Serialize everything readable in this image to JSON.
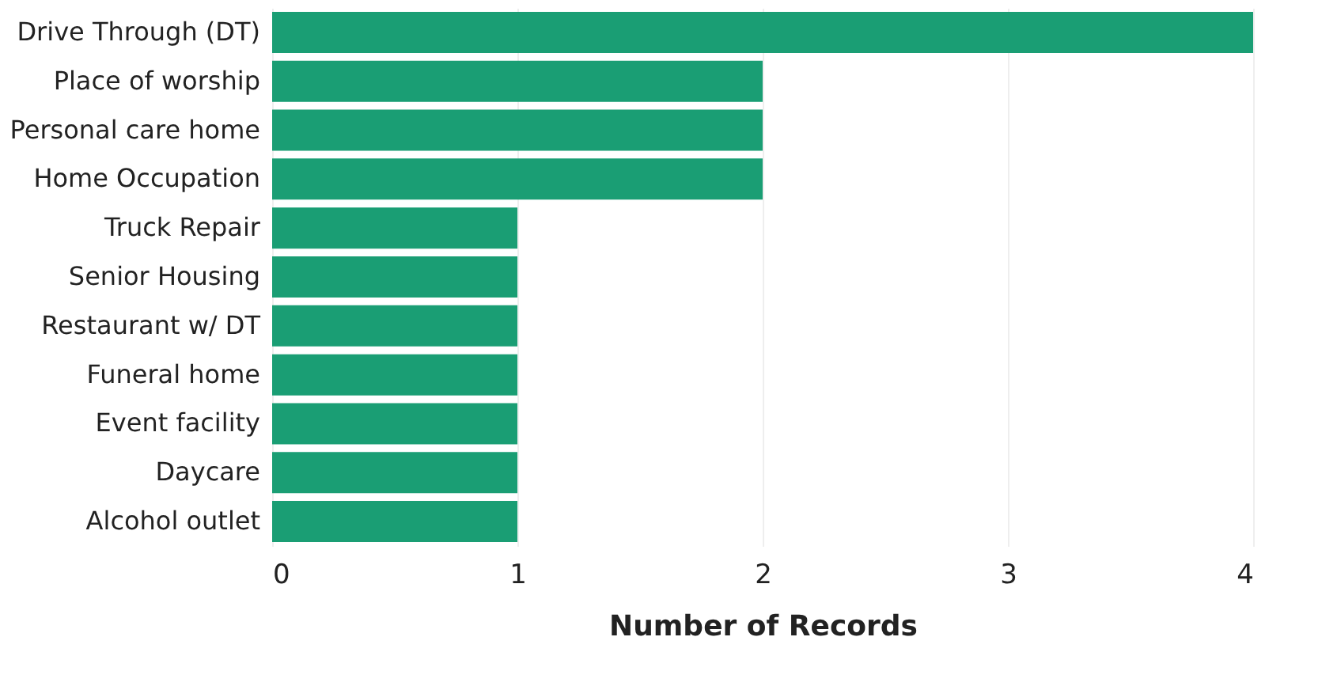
{
  "chart_data": {
    "type": "bar",
    "orientation": "horizontal",
    "xlabel": "Number of Records",
    "categories": [
      "Drive Through (DT)",
      "Place of worship",
      "Personal care home",
      "Home Occupation",
      "Truck Repair",
      "Senior Housing",
      "Restaurant w/ DT",
      "Funeral home",
      "Event facility",
      "Daycare",
      "Alcohol outlet"
    ],
    "values": [
      4,
      2,
      2,
      2,
      1,
      1,
      1,
      1,
      1,
      1,
      1
    ],
    "color": "#1a9e74",
    "xlim": [
      0,
      4
    ],
    "xticks": [
      0,
      1,
      2,
      3,
      4
    ],
    "grid": "x"
  }
}
